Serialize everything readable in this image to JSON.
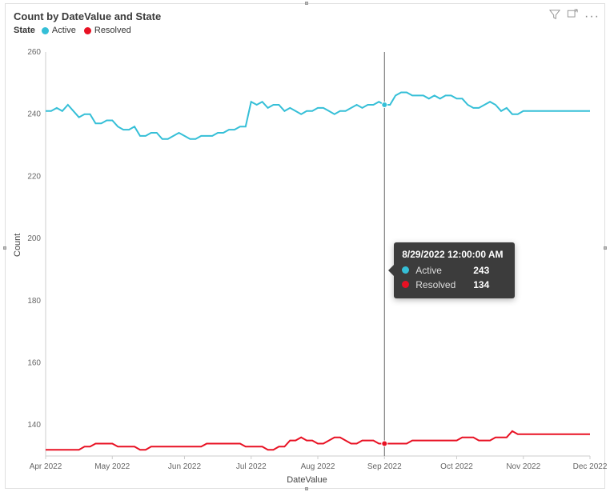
{
  "chart": {
    "type": "line",
    "title": "Count by DateValue and State",
    "legend_label": "State",
    "x_axis_label": "DateValue",
    "y_axis_label": "Count",
    "background_color": "#ffffff",
    "border_color": "#e0e0e0",
    "grid_color": "#e6e6e6",
    "axis_line_color": "#cccccc",
    "tick_text_color": "#666666",
    "ylim": [
      130,
      260
    ],
    "yticks": [
      140,
      160,
      180,
      200,
      220,
      240,
      260
    ],
    "xrange_months": [
      "Apr 2022",
      "May 2022",
      "Jun 2022",
      "Jul 2022",
      "Aug 2022",
      "Sep 2022",
      "Oct 2022",
      "Nov 2022",
      "Dec 2022"
    ],
    "line_width": 2,
    "series": [
      {
        "name": "Active",
        "color": "#35bfd7",
        "values": [
          241,
          241,
          242,
          241,
          243,
          241,
          239,
          240,
          240,
          237,
          237,
          238,
          238,
          236,
          235,
          235,
          236,
          233,
          233,
          234,
          234,
          232,
          232,
          233,
          234,
          233,
          232,
          232,
          233,
          233,
          233,
          234,
          234,
          235,
          235,
          236,
          236,
          244,
          243,
          244,
          242,
          243,
          243,
          241,
          242,
          241,
          240,
          241,
          241,
          242,
          242,
          241,
          240,
          241,
          241,
          242,
          243,
          242,
          243,
          243,
          244,
          243,
          243,
          246,
          247,
          247,
          246,
          246,
          246,
          245,
          246,
          245,
          246,
          246,
          245,
          245,
          243,
          242,
          242,
          243,
          244,
          243,
          241,
          242,
          240,
          240,
          241,
          241,
          241,
          241,
          241,
          241,
          241,
          241,
          241,
          241,
          241,
          241,
          241
        ]
      },
      {
        "name": "Resolved",
        "color": "#e81123",
        "values": [
          132,
          132,
          132,
          132,
          132,
          132,
          132,
          133,
          133,
          134,
          134,
          134,
          134,
          133,
          133,
          133,
          133,
          132,
          132,
          133,
          133,
          133,
          133,
          133,
          133,
          133,
          133,
          133,
          133,
          134,
          134,
          134,
          134,
          134,
          134,
          134,
          133,
          133,
          133,
          133,
          132,
          132,
          133,
          133,
          135,
          135,
          136,
          135,
          135,
          134,
          134,
          135,
          136,
          136,
          135,
          134,
          134,
          135,
          135,
          135,
          134,
          134,
          134,
          134,
          134,
          134,
          135,
          135,
          135,
          135,
          135,
          135,
          135,
          135,
          135,
          136,
          136,
          136,
          135,
          135,
          135,
          136,
          136,
          136,
          138,
          137,
          137,
          137,
          137,
          137,
          137,
          137,
          137,
          137,
          137,
          137,
          137,
          137,
          137
        ]
      }
    ],
    "hover": {
      "index": 61,
      "date_label": "8/29/2022 12:00:00 AM",
      "rows": [
        {
          "name": "Active",
          "value": "243",
          "color": "#35bfd7"
        },
        {
          "name": "Resolved",
          "value": "134",
          "color": "#e81123"
        }
      ],
      "line_color": "#666666",
      "background": "#3c3c3c",
      "text_color": "#e6e6e6"
    }
  },
  "toolbar": {
    "filter_icon": "filter-icon",
    "focus_icon": "focus-mode-icon",
    "more_icon": "more-options-icon"
  }
}
